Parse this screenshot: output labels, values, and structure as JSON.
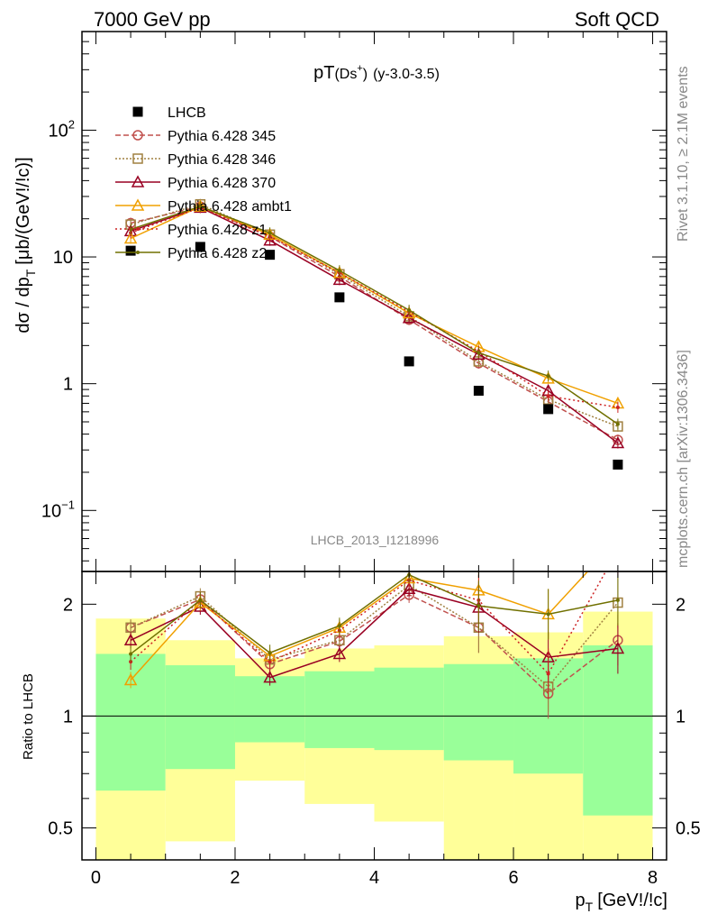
{
  "header": {
    "left": "7000 GeV pp",
    "right": "Soft QCD"
  },
  "side": {
    "rivet": "Rivet 3.1.10, ≥ 2.1M events",
    "mcplots": "mcplots.cern.ch [arXiv:1306.3436]"
  },
  "colors": {
    "data": "#000000",
    "p345": "#c0504d",
    "p346": "#a08040",
    "p370": "#990022",
    "ambt1": "#f0a000",
    "z1": "#cc2222",
    "z2": "#707000",
    "band1": "#99ff99",
    "band2": "#ffff99"
  },
  "chart_data": [
    {
      "type": "scatter",
      "title_main": "pT",
      "title_sub": "(Ds",
      "title_sup": "+",
      "title_close": ")",
      "title_range": "(y-3.0-3.5)",
      "watermark": "LHCB_2013_I1218996",
      "ylabel": "dσ / dp",
      "ylabel_sub": "T",
      "ylabel_units": "[μb/(GeV!/!c)]",
      "yscale": "log",
      "ylim": [
        0.033,
        600
      ],
      "xlim": [
        -0.2,
        8.2
      ],
      "yticks": [
        {
          "value": 0.1,
          "label": "10",
          "sup": "−1"
        },
        {
          "value": 1,
          "label": "1",
          "sup": ""
        },
        {
          "value": 10,
          "label": "10",
          "sup": ""
        },
        {
          "value": 100,
          "label": "10",
          "sup": "2"
        }
      ],
      "x": [
        0.5,
        1.5,
        2.5,
        3.5,
        4.5,
        5.5,
        6.5,
        7.5
      ],
      "series": [
        {
          "name": "LHCB",
          "key": "data",
          "marker": "square",
          "dash": "none",
          "values": [
            11.2,
            12.0,
            10.4,
            4.8,
            1.5,
            0.88,
            0.63,
            0.23
          ]
        },
        {
          "name": "Pythia 6.428 345",
          "key": "p345",
          "marker": "circle",
          "dash": "6,3",
          "values": [
            18.5,
            25.0,
            14.5,
            7.0,
            3.2,
            1.45,
            0.72,
            0.36
          ]
        },
        {
          "name": "Pythia 6.428 346",
          "key": "p346",
          "marker": "square-open",
          "dash": "2,2",
          "values": [
            18.0,
            26.0,
            15.0,
            7.3,
            3.4,
            1.5,
            0.75,
            0.46
          ]
        },
        {
          "name": "Pythia 6.428 370",
          "key": "p370",
          "marker": "triangle",
          "dash": "none",
          "values": [
            16.0,
            24.5,
            13.5,
            6.6,
            3.3,
            1.7,
            0.88,
            0.34
          ]
        },
        {
          "name": "Pythia 6.428 ambt1",
          "key": "ambt1",
          "marker": "triangle",
          "dash": "none",
          "values": [
            14.0,
            25.0,
            15.0,
            7.5,
            3.6,
            1.95,
            1.1,
            0.7
          ]
        },
        {
          "name": "Pythia 6.428 z1",
          "key": "z1",
          "marker": "dot",
          "dash": "2,3",
          "values": [
            15.5,
            24.5,
            14.5,
            7.5,
            3.7,
            1.8,
            0.8,
            0.65
          ]
        },
        {
          "name": "Pythia 6.428 z2",
          "key": "z2",
          "marker": "dot",
          "dash": "none",
          "values": [
            16.5,
            25.0,
            15.5,
            7.8,
            3.8,
            1.75,
            1.15,
            0.48
          ]
        }
      ]
    },
    {
      "type": "line",
      "ylabel": "Ratio to LHCB",
      "xlabel": "p",
      "xlabel_sub": "T",
      "xlabel_units": "[GeV!/!c]",
      "yscale": "log",
      "ylim": [
        0.41,
        2.45
      ],
      "xlim": [
        -0.2,
        8.2
      ],
      "xticks": [
        0,
        2,
        4,
        6,
        8
      ],
      "yticks": [
        0.5,
        1,
        2
      ],
      "bands": {
        "edges": [
          0,
          1,
          2,
          3,
          4,
          5,
          6,
          7,
          8
        ],
        "inner_lo": [
          0.63,
          0.72,
          0.85,
          0.82,
          0.81,
          0.76,
          0.7,
          0.54
        ],
        "inner_hi": [
          1.47,
          1.37,
          1.28,
          1.32,
          1.35,
          1.38,
          1.43,
          1.55
        ],
        "outer_lo": [
          0.35,
          0.46,
          0.67,
          0.58,
          0.52,
          0.4,
          0.38,
          0.3
        ],
        "outer_hi": [
          1.83,
          1.6,
          1.43,
          1.52,
          1.55,
          1.64,
          1.68,
          1.91
        ]
      },
      "x": [
        0.5,
        1.5,
        2.5,
        3.5,
        4.5,
        5.5,
        6.5,
        7.5
      ],
      "series": [
        {
          "key": "p345",
          "marker": "circle",
          "dash": "6,3",
          "values": [
            1.73,
            2.06,
            1.38,
            1.59,
            2.12,
            1.73,
            1.15,
            1.6
          ]
        },
        {
          "key": "p346",
          "marker": "square-open",
          "dash": "2,2",
          "values": [
            1.73,
            2.1,
            1.42,
            1.6,
            2.25,
            1.73,
            1.2,
            2.02
          ]
        },
        {
          "key": "p370",
          "marker": "triangle",
          "dash": "none",
          "values": [
            1.6,
            1.97,
            1.27,
            1.47,
            2.2,
            1.96,
            1.44,
            1.52
          ]
        },
        {
          "key": "ambt1",
          "marker": "triangle",
          "dash": "none",
          "values": [
            1.25,
            2.02,
            1.45,
            1.73,
            2.35,
            2.18,
            1.88,
            3.0
          ]
        },
        {
          "key": "z1",
          "marker": "dot",
          "dash": "2,3",
          "values": [
            1.4,
            2.05,
            1.4,
            1.7,
            2.32,
            2.05,
            1.3,
            2.8
          ]
        },
        {
          "key": "z2",
          "marker": "dot",
          "dash": "none",
          "values": [
            1.47,
            2.05,
            1.48,
            1.75,
            2.4,
            1.98,
            1.88,
            2.05
          ]
        }
      ]
    }
  ]
}
